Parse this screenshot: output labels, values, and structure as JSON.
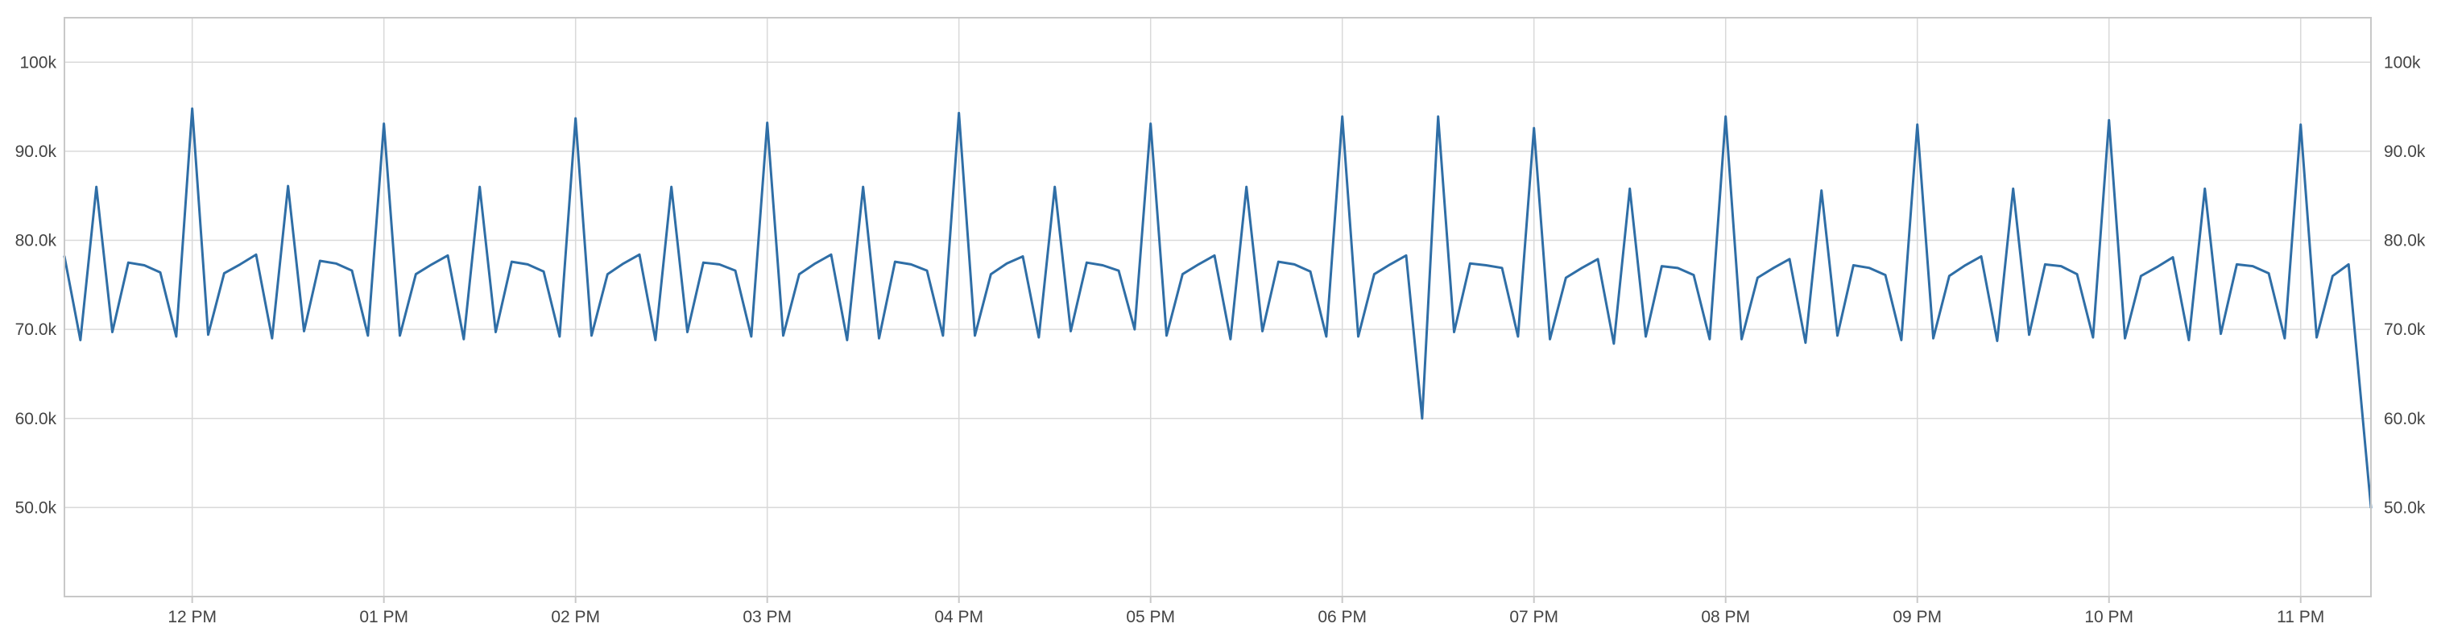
{
  "chart_data": {
    "type": "line",
    "title": "",
    "xlabel": "",
    "ylabel": "",
    "x_domain": [
      "11:20",
      "23:22"
    ],
    "x_ticks": [
      "12 PM",
      "01 PM",
      "02 PM",
      "03 PM",
      "04 PM",
      "05 PM",
      "06 PM",
      "07 PM",
      "08 PM",
      "09 PM",
      "10 PM",
      "11 PM"
    ],
    "ylim": [
      40000,
      105000
    ],
    "y_ticks": [
      "50.0k",
      "60.0k",
      "70.0k",
      "80.0k",
      "90.0k",
      "100k"
    ],
    "grid": true,
    "legend": "none",
    "series_color": "#2f6ea6",
    "series": [
      {
        "x": [
          "11:20",
          "11:25",
          "11:30",
          "11:35",
          "11:40",
          "11:45",
          "11:50",
          "11:55",
          "12:00",
          "12:05",
          "12:10",
          "12:15",
          "12:20",
          "12:25",
          "12:30",
          "12:35",
          "12:40",
          "12:45",
          "12:50",
          "12:55",
          "13:00",
          "13:05",
          "13:10",
          "13:15",
          "13:20",
          "13:25",
          "13:30",
          "13:35",
          "13:40",
          "13:45",
          "13:50",
          "13:55",
          "14:00",
          "14:05",
          "14:10",
          "14:15",
          "14:20",
          "14:25",
          "14:30",
          "14:35",
          "14:40",
          "14:45",
          "14:50",
          "14:55",
          "15:00",
          "15:05",
          "15:10",
          "15:15",
          "15:20",
          "15:25",
          "15:30",
          "15:35",
          "15:40",
          "15:45",
          "15:50",
          "15:55",
          "16:00",
          "16:05",
          "16:10",
          "16:15",
          "16:20",
          "16:25",
          "16:30",
          "16:35",
          "16:40",
          "16:45",
          "16:50",
          "16:55",
          "17:00",
          "17:05",
          "17:10",
          "17:15",
          "17:20",
          "17:25",
          "17:30",
          "17:35",
          "17:40",
          "17:45",
          "17:50",
          "17:55",
          "18:00",
          "18:05",
          "18:10",
          "18:15",
          "18:20",
          "18:25",
          "18:30",
          "18:35",
          "18:40",
          "18:45",
          "18:50",
          "18:55",
          "19:00",
          "19:05",
          "19:10",
          "19:15",
          "19:20",
          "19:25",
          "19:30",
          "19:35",
          "19:40",
          "19:45",
          "19:50",
          "19:55",
          "20:00",
          "20:05",
          "20:10",
          "20:15",
          "20:20",
          "20:25",
          "20:30",
          "20:35",
          "20:40",
          "20:45",
          "20:50",
          "20:55",
          "21:00",
          "21:05",
          "21:10",
          "21:15",
          "21:20",
          "21:25",
          "21:30",
          "21:35",
          "21:40",
          "21:45",
          "21:50",
          "21:55",
          "22:00",
          "22:05",
          "22:10",
          "22:15",
          "22:20",
          "22:25",
          "22:30",
          "22:35",
          "22:40",
          "22:45",
          "22:50",
          "22:55",
          "23:00",
          "23:05",
          "23:10",
          "23:15",
          "23:22"
        ],
        "values": [
          78200,
          68800,
          86000,
          69700,
          77500,
          77200,
          76400,
          69200,
          94800,
          69400,
          76300,
          77300,
          78400,
          69000,
          86100,
          69800,
          77700,
          77400,
          76600,
          69300,
          93100,
          69300,
          76200,
          77300,
          78300,
          68900,
          86000,
          69700,
          77600,
          77300,
          76500,
          69200,
          93700,
          69300,
          76200,
          77400,
          78400,
          68800,
          86000,
          69700,
          77500,
          77300,
          76600,
          69200,
          93200,
          69300,
          76200,
          77400,
          78400,
          68800,
          86000,
          69000,
          77600,
          77300,
          76600,
          69300,
          94300,
          69300,
          76200,
          77400,
          78200,
          69100,
          86000,
          69800,
          77500,
          77200,
          76600,
          70000,
          93100,
          69300,
          76200,
          77300,
          78300,
          68900,
          86000,
          69800,
          77600,
          77300,
          76500,
          69200,
          93900,
          69200,
          76200,
          77300,
          78300,
          60000,
          93900,
          69700,
          77400,
          77200,
          76900,
          69200,
          92600,
          68900,
          75800,
          76900,
          77900,
          68400,
          85800,
          69200,
          77100,
          76900,
          76100,
          68900,
          93900,
          68900,
          75800,
          76900,
          77900,
          68500,
          85600,
          69300,
          77200,
          76900,
          76100,
          68800,
          93000,
          69000,
          76000,
          77200,
          78200,
          68700,
          85800,
          69400,
          77300,
          77100,
          76200,
          69100,
          93500,
          69000,
          76000,
          77000,
          78100,
          68800,
          85800,
          69500,
          77300,
          77100,
          76300,
          69000,
          93000,
          69100,
          76000,
          77300,
          50000
        ]
      }
    ]
  }
}
